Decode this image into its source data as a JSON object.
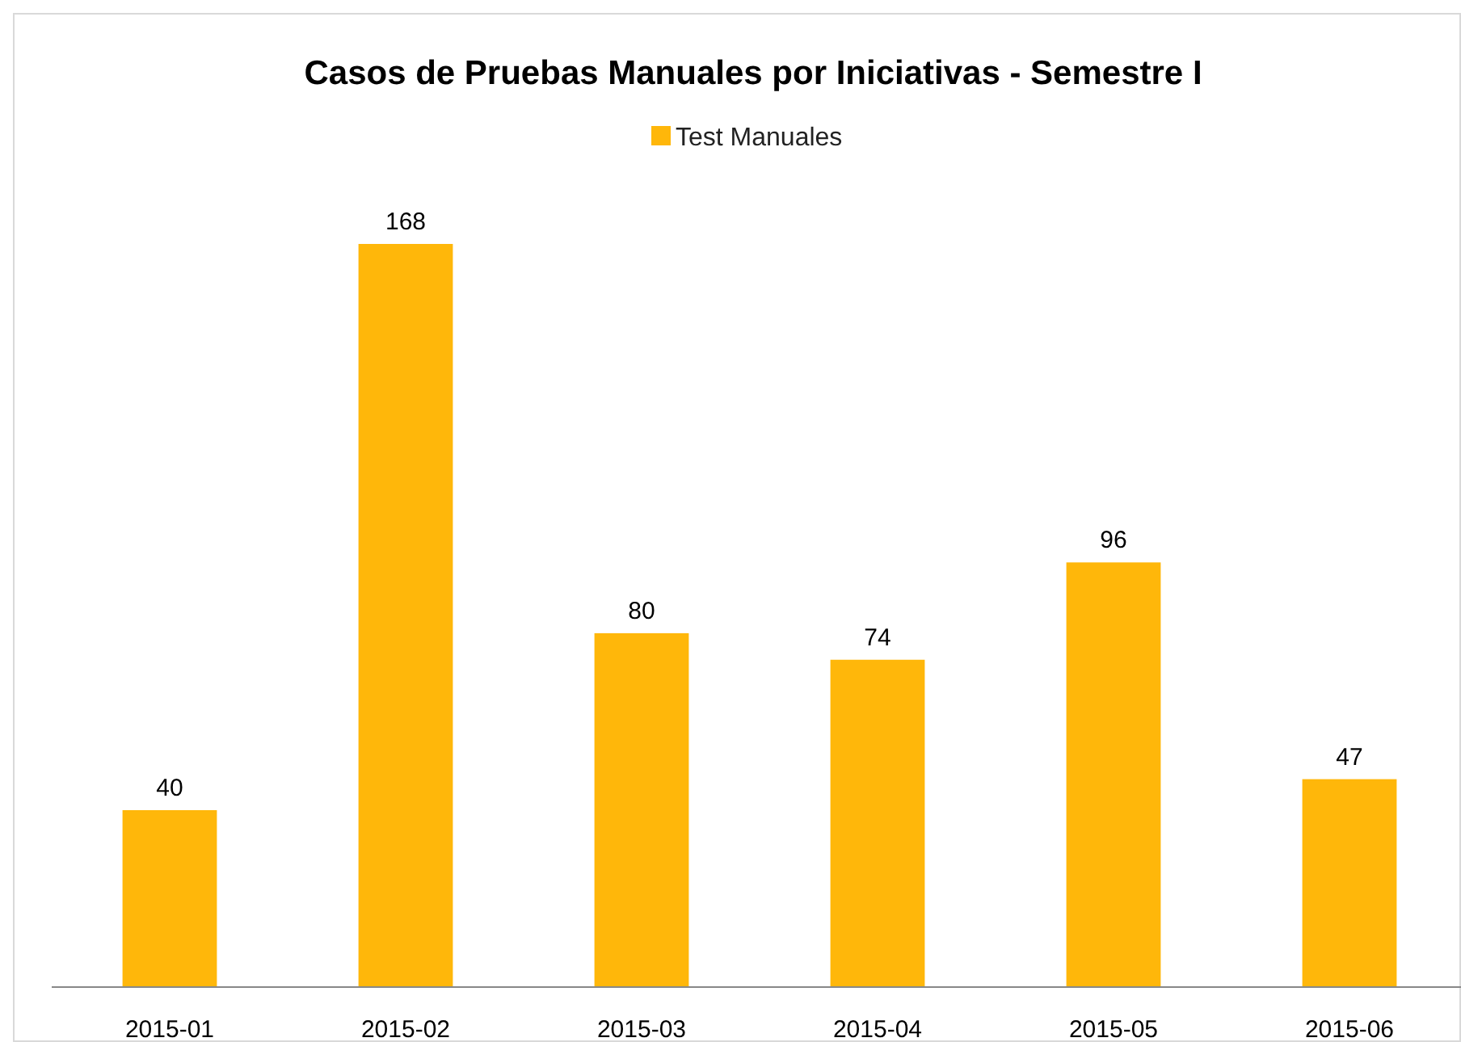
{
  "chart_data": {
    "type": "bar",
    "title": "Casos de Pruebas Manuales por Iniciativas - Semestre I",
    "categories": [
      "2015-01",
      "2015-02",
      "2015-03",
      "2015-04",
      "2015-05",
      "2015-06"
    ],
    "series": [
      {
        "name": "Test Manuales",
        "color": "#ffb70a",
        "values": [
          40,
          168,
          80,
          74,
          96,
          47
        ]
      }
    ],
    "data_labels": true,
    "legend": "top"
  }
}
